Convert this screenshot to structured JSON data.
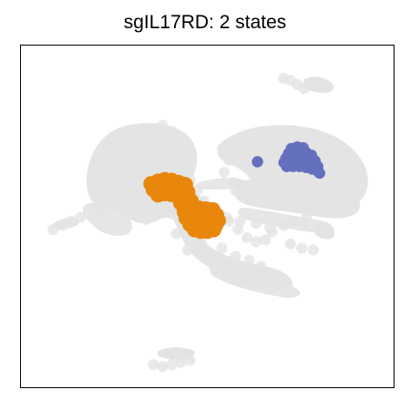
{
  "chart_data": {
    "type": "scatter",
    "title": "sgIL17RD: 2 states",
    "xlabel": "",
    "ylabel": "",
    "axes_ticks": "none",
    "grid": false,
    "legend": "none",
    "colors": {
      "background_cells": "#e3e3e3",
      "state_1": "#e8870c",
      "state_2": "#6470bd"
    },
    "series": [
      {
        "role": "background",
        "color": "#e3e3e3",
        "points": [
          [
            -1.6,
            1.9
          ],
          [
            -1.45,
            2.15
          ],
          [
            -1.3,
            2.35
          ],
          [
            -1.1,
            2.45
          ],
          [
            -0.9,
            2.3
          ],
          [
            -0.75,
            2.05
          ],
          [
            -0.6,
            1.75
          ],
          [
            -0.55,
            1.45
          ],
          [
            -0.5,
            1.1
          ],
          [
            -0.35,
            0.85
          ],
          [
            -0.2,
            0.6
          ],
          [
            -0.05,
            0.45
          ],
          [
            0.15,
            0.3
          ],
          [
            0.35,
            0.1
          ],
          [
            0.55,
            -0.1
          ],
          [
            0.75,
            -0.3
          ],
          [
            0.95,
            -0.4
          ],
          [
            1.15,
            -0.35
          ],
          [
            1.3,
            -0.15
          ],
          [
            -1.8,
            1.6
          ],
          [
            -1.95,
            1.35
          ],
          [
            -2.1,
            1.1
          ],
          [
            -2.25,
            0.85
          ],
          [
            -2.4,
            0.6
          ],
          [
            -2.55,
            0.4
          ],
          [
            -1.6,
            1.2
          ],
          [
            -1.35,
            0.95
          ],
          [
            -1.1,
            0.7
          ],
          [
            -0.85,
            0.5
          ],
          [
            -0.6,
            0.35
          ],
          [
            -0.45,
            0.1
          ],
          [
            -0.35,
            -0.15
          ],
          [
            -0.25,
            -0.4
          ],
          [
            -0.15,
            -0.65
          ],
          [
            -0.05,
            -0.85
          ],
          [
            0.1,
            -1.05
          ],
          [
            0.3,
            -1.2
          ],
          [
            0.5,
            -1.3
          ],
          [
            0.7,
            -1.35
          ],
          [
            0.9,
            -1.4
          ],
          [
            1.1,
            -1.45
          ],
          [
            -2.9,
            0.2
          ],
          [
            -3.1,
            0.1
          ],
          [
            -3.3,
            0.0
          ],
          [
            -3.5,
            -0.1
          ],
          [
            0.6,
            1.9
          ],
          [
            0.85,
            2.05
          ],
          [
            1.1,
            2.15
          ],
          [
            1.35,
            2.1
          ],
          [
            1.6,
            2.0
          ],
          [
            1.85,
            1.95
          ],
          [
            2.1,
            1.9
          ],
          [
            2.35,
            1.8
          ],
          [
            2.55,
            1.6
          ],
          [
            2.7,
            1.35
          ],
          [
            2.8,
            1.1
          ],
          [
            2.85,
            0.85
          ],
          [
            2.7,
            0.65
          ],
          [
            2.45,
            0.55
          ],
          [
            2.15,
            0.5
          ],
          [
            1.85,
            0.5
          ],
          [
            1.55,
            0.55
          ],
          [
            1.25,
            0.6
          ],
          [
            0.95,
            0.7
          ],
          [
            0.7,
            0.85
          ],
          [
            0.45,
            1.05
          ],
          [
            0.25,
            1.3
          ],
          [
            0.35,
            1.6
          ],
          [
            0.5,
            0.85
          ],
          [
            0.9,
            1.3
          ],
          [
            1.4,
            0.9
          ],
          [
            1.9,
            0.85
          ],
          [
            2.3,
            1.05
          ],
          [
            2.5,
            1.3
          ],
          [
            1.2,
            1.6
          ],
          [
            1.6,
            1.45
          ],
          [
            0.3,
            0.2
          ],
          [
            0.6,
            0.1
          ],
          [
            0.95,
            0.05
          ],
          [
            1.25,
            -0.05
          ],
          [
            1.55,
            0.0
          ],
          [
            1.8,
            0.1
          ],
          [
            2.05,
            0.2
          ],
          [
            1.7,
            -0.45
          ],
          [
            1.95,
            -0.55
          ],
          [
            2.2,
            -0.6
          ],
          [
            1.7,
            3.55
          ],
          [
            1.85,
            3.45
          ],
          [
            2.0,
            3.35
          ],
          [
            1.55,
            3.6
          ],
          [
            -0.5,
            -3.3
          ],
          [
            -0.7,
            -3.35
          ],
          [
            -0.9,
            -3.4
          ],
          [
            -1.1,
            -3.45
          ],
          [
            -1.3,
            -3.4
          ],
          [
            -1.95,
            1.85
          ],
          [
            -2.2,
            1.7
          ],
          [
            -2.35,
            1.45
          ],
          [
            -1.25,
            1.75
          ],
          [
            -1.05,
            1.3
          ],
          [
            -0.8,
            0.95
          ],
          [
            -2.0,
            0.55
          ],
          [
            -1.7,
            0.35
          ],
          [
            -1.45,
            0.15
          ],
          [
            -0.8,
            -0.2
          ],
          [
            -0.55,
            -0.6
          ],
          [
            0.2,
            -0.55
          ],
          [
            0.5,
            -0.75
          ],
          [
            0.8,
            -0.85
          ],
          [
            1.05,
            -1.0
          ]
        ]
      },
      {
        "role": "state_1",
        "color": "#e8870c",
        "points": [
          [
            -1.35,
            1.02
          ],
          [
            -1.2,
            1.08
          ],
          [
            -1.05,
            1.12
          ],
          [
            -0.9,
            1.1
          ],
          [
            -0.75,
            1.05
          ],
          [
            -0.6,
            1.0
          ],
          [
            -1.3,
            0.88
          ],
          [
            -1.15,
            0.92
          ],
          [
            -1.0,
            0.95
          ],
          [
            -0.85,
            0.92
          ],
          [
            -0.7,
            0.88
          ],
          [
            -0.55,
            0.82
          ],
          [
            -1.2,
            0.75
          ],
          [
            -1.05,
            0.78
          ],
          [
            -0.9,
            0.76
          ],
          [
            -0.75,
            0.72
          ],
          [
            -0.6,
            0.66
          ],
          [
            -0.48,
            0.6
          ],
          [
            -0.7,
            0.55
          ],
          [
            -0.58,
            0.48
          ],
          [
            -0.45,
            0.45
          ],
          [
            -0.3,
            0.42
          ],
          [
            -0.15,
            0.4
          ],
          [
            0.0,
            0.38
          ],
          [
            -0.62,
            0.34
          ],
          [
            -0.48,
            0.3
          ],
          [
            -0.34,
            0.28
          ],
          [
            -0.2,
            0.27
          ],
          [
            -0.06,
            0.26
          ],
          [
            0.08,
            0.25
          ],
          [
            -0.58,
            0.18
          ],
          [
            -0.44,
            0.15
          ],
          [
            -0.3,
            0.13
          ],
          [
            -0.16,
            0.12
          ],
          [
            -0.02,
            0.12
          ],
          [
            0.12,
            0.12
          ],
          [
            -0.5,
            0.03
          ],
          [
            -0.36,
            0.0
          ],
          [
            -0.22,
            -0.02
          ],
          [
            -0.08,
            -0.02
          ],
          [
            0.06,
            0.0
          ],
          [
            -0.4,
            -0.1
          ],
          [
            -0.26,
            -0.14
          ],
          [
            -0.12,
            -0.14
          ],
          [
            0.02,
            -0.1
          ]
        ]
      },
      {
        "role": "state_2",
        "color": "#6470bd",
        "points": [
          [
            1.72,
            1.88
          ],
          [
            1.85,
            1.92
          ],
          [
            1.98,
            1.9
          ],
          [
            1.66,
            1.76
          ],
          [
            1.79,
            1.8
          ],
          [
            1.92,
            1.8
          ],
          [
            2.05,
            1.78
          ],
          [
            2.16,
            1.72
          ],
          [
            1.6,
            1.64
          ],
          [
            1.73,
            1.68
          ],
          [
            1.86,
            1.68
          ],
          [
            1.99,
            1.66
          ],
          [
            2.12,
            1.62
          ],
          [
            2.24,
            1.58
          ],
          [
            1.56,
            1.54
          ],
          [
            1.69,
            1.56
          ],
          [
            1.82,
            1.56
          ],
          [
            1.95,
            1.55
          ],
          [
            2.08,
            1.52
          ],
          [
            2.2,
            1.48
          ],
          [
            2.3,
            1.44
          ],
          [
            1.62,
            1.44
          ],
          [
            1.76,
            1.44
          ],
          [
            1.9,
            1.44
          ],
          [
            2.04,
            1.42
          ],
          [
            2.17,
            1.38
          ],
          [
            2.28,
            1.34
          ],
          [
            2.34,
            1.28
          ],
          [
            0.98,
            1.56
          ]
        ]
      }
    ]
  }
}
